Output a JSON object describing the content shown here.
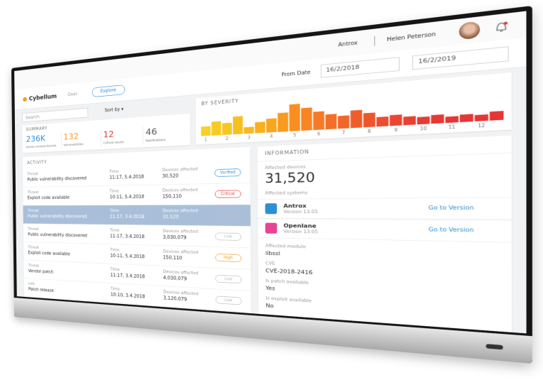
{
  "header": {
    "company": "Antrox",
    "user": "Helen Peterson"
  },
  "toolbar": {
    "logo": "Cybellum",
    "nav": "Over",
    "button": "Explore",
    "date_label": "From Date",
    "date_from": "16/2/2018",
    "date_to": "16/2/2019"
  },
  "search": {
    "placeholder": "Search",
    "sort": "Sort by"
  },
  "summary": {
    "title": "SUMMARY",
    "stats": [
      {
        "value": "236K",
        "label": "Active running devices",
        "color": "#2f8fd6"
      },
      {
        "value": "132",
        "label": "Vulnerabilities",
        "color": "#f39c2b"
      },
      {
        "value": "12",
        "label": "Critical issues",
        "color": "#e53935"
      },
      {
        "value": "46",
        "label": "Notifications",
        "color": "#555555"
      }
    ]
  },
  "severity_chart": {
    "type": "bar",
    "title": "BY SEVERITY",
    "categories": [
      "1",
      null,
      "2",
      null,
      "3",
      null,
      "4",
      null,
      "5",
      null,
      "6",
      null,
      "7",
      null,
      "8",
      null,
      "9",
      null,
      "10",
      null,
      "11",
      null,
      "12",
      null
    ],
    "values": [
      18,
      26,
      22,
      33,
      12,
      20,
      25,
      34,
      48,
      40,
      32,
      26,
      22,
      30,
      24,
      16,
      18,
      14,
      12,
      14,
      10,
      12,
      10,
      14
    ],
    "colors": [
      "#f7d02a",
      "#f7cb27",
      "#f7c624",
      "#f7c021",
      "#f8b820",
      "#f8b01f",
      "#f9a61f",
      "#f99b20",
      "#f98f21",
      "#f88423",
      "#f67a25",
      "#f46f27",
      "#f26629",
      "#f05d2b",
      "#ee552d",
      "#ec4d2f",
      "#ea4631",
      "#e84032",
      "#e73b33",
      "#e63834",
      "#e53635",
      "#e53535",
      "#e53535",
      "#e53535"
    ]
  },
  "activity": {
    "title": "ACTIVITY",
    "selected_row": 2,
    "rows": [
      {
        "type": "Threat",
        "event": "Public vulnerability discovered",
        "time_label": "Time",
        "time": "11:17, 5.4.2018",
        "devices_label": "Devices affected",
        "devices": "30,520",
        "status": "Verified",
        "color": "#2f8fd6"
      },
      {
        "type": "Threat",
        "event": "Exploit code available",
        "time_label": "Time",
        "time": "10:11, 5.4.2018",
        "devices_label": "Devices affected",
        "devices": "150,110",
        "status": "Critical",
        "color": "#e53935"
      },
      {
        "type": "Threat",
        "event": "Public vulnerability discovered",
        "time_label": "Time",
        "time": "11:17, 3.4.2018",
        "devices_label": "Devices affected",
        "devices": "31,520",
        "status": "Low",
        "color": "#bbbbbb"
      },
      {
        "type": "Threat",
        "event": "Public vulnerability discovered",
        "time_label": "Time",
        "time": "11:17, 3.4.2018",
        "devices_label": "Devices affected",
        "devices": "3,030,079",
        "status": "Low",
        "color": "#bbbbbb"
      },
      {
        "type": "Threat",
        "event": "Exploit code available",
        "time_label": "Time",
        "time": "10:11, 5.4.2018",
        "devices_label": "Devices affected",
        "devices": "150,110",
        "status": "High",
        "color": "#f39c2b"
      },
      {
        "type": "Threat",
        "event": "Vendor patch",
        "time_label": "Time",
        "time": "11:17, 3.4.2018",
        "devices_label": "Devices affected",
        "devices": "4,030,079",
        "status": "Low",
        "color": "#bbbbbb"
      },
      {
        "type": "Info",
        "event": "Patch release",
        "time_label": "Time",
        "time": "10:10, 3.4.2018",
        "devices_label": "Devices affected",
        "devices": "3,120,079",
        "status": "Low",
        "color": "#bbbbbb"
      }
    ]
  },
  "information": {
    "title": "INFORMATION",
    "devices_label": "Affected devices",
    "devices": "31,520",
    "systems_label": "Affected systems",
    "systems": [
      {
        "name": "Antrox",
        "version": "Version 13.05",
        "link": "Go to Version"
      },
      {
        "name": "Openlane",
        "version": "Version 13.05",
        "link": "Go to Version"
      }
    ],
    "fields": [
      {
        "label": "Affected module",
        "value": "libssl"
      },
      {
        "label": "CVE",
        "value": "CVE-2018-2416"
      },
      {
        "label": "Is patch available",
        "value": "Yes"
      },
      {
        "label": "Is exploit available",
        "value": "No"
      }
    ]
  }
}
